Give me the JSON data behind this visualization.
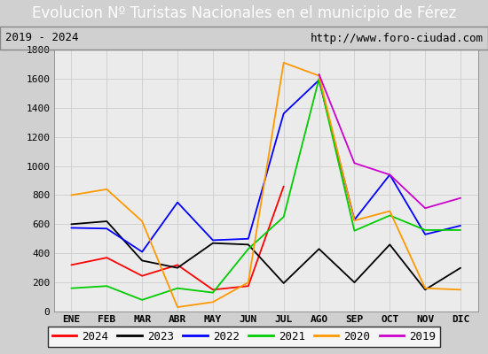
{
  "title": "Evolucion Nº Turistas Nacionales en el municipio de Férez",
  "subtitle_left": "2019 - 2024",
  "subtitle_right": "http://www.foro-ciudad.com",
  "x_labels": [
    "ENE",
    "FEB",
    "MAR",
    "ABR",
    "MAY",
    "JUN",
    "JUL",
    "AGO",
    "SEP",
    "OCT",
    "NOV",
    "DIC"
  ],
  "ylim": [
    0,
    1800
  ],
  "yticks": [
    0,
    200,
    400,
    600,
    800,
    1000,
    1200,
    1400,
    1600,
    1800
  ],
  "series": {
    "2024": {
      "color": "#ff0000",
      "data": [
        320,
        370,
        245,
        320,
        150,
        175,
        860,
        null,
        null,
        null,
        null,
        null
      ]
    },
    "2023": {
      "color": "#000000",
      "data": [
        600,
        620,
        350,
        300,
        470,
        460,
        195,
        430,
        200,
        460,
        150,
        300
      ]
    },
    "2022": {
      "color": "#0000ff",
      "data": [
        575,
        570,
        410,
        750,
        490,
        500,
        1360,
        1590,
        630,
        940,
        530,
        590
      ]
    },
    "2021": {
      "color": "#00cc00",
      "data": [
        160,
        175,
        80,
        160,
        130,
        430,
        650,
        1600,
        555,
        660,
        560,
        560
      ]
    },
    "2020": {
      "color": "#ff9900",
      "data": [
        800,
        840,
        620,
        30,
        65,
        200,
        1710,
        1620,
        625,
        690,
        160,
        150
      ]
    },
    "2019": {
      "color": "#cc00cc",
      "data": [
        null,
        null,
        null,
        null,
        null,
        null,
        null,
        1630,
        1020,
        940,
        710,
        780
      ]
    }
  },
  "title_bg_color": "#4f81bd",
  "title_text_color": "#ffffff",
  "plot_bg_color": "#e8e8e8",
  "chart_bg_color": "#f0f0f0",
  "grid_color": "#cccccc",
  "border_color": "#888888",
  "fig_bg_color": "#d0d0d0",
  "title_fontsize": 12,
  "subtitle_fontsize": 9,
  "axis_fontsize": 8,
  "legend_fontsize": 9
}
